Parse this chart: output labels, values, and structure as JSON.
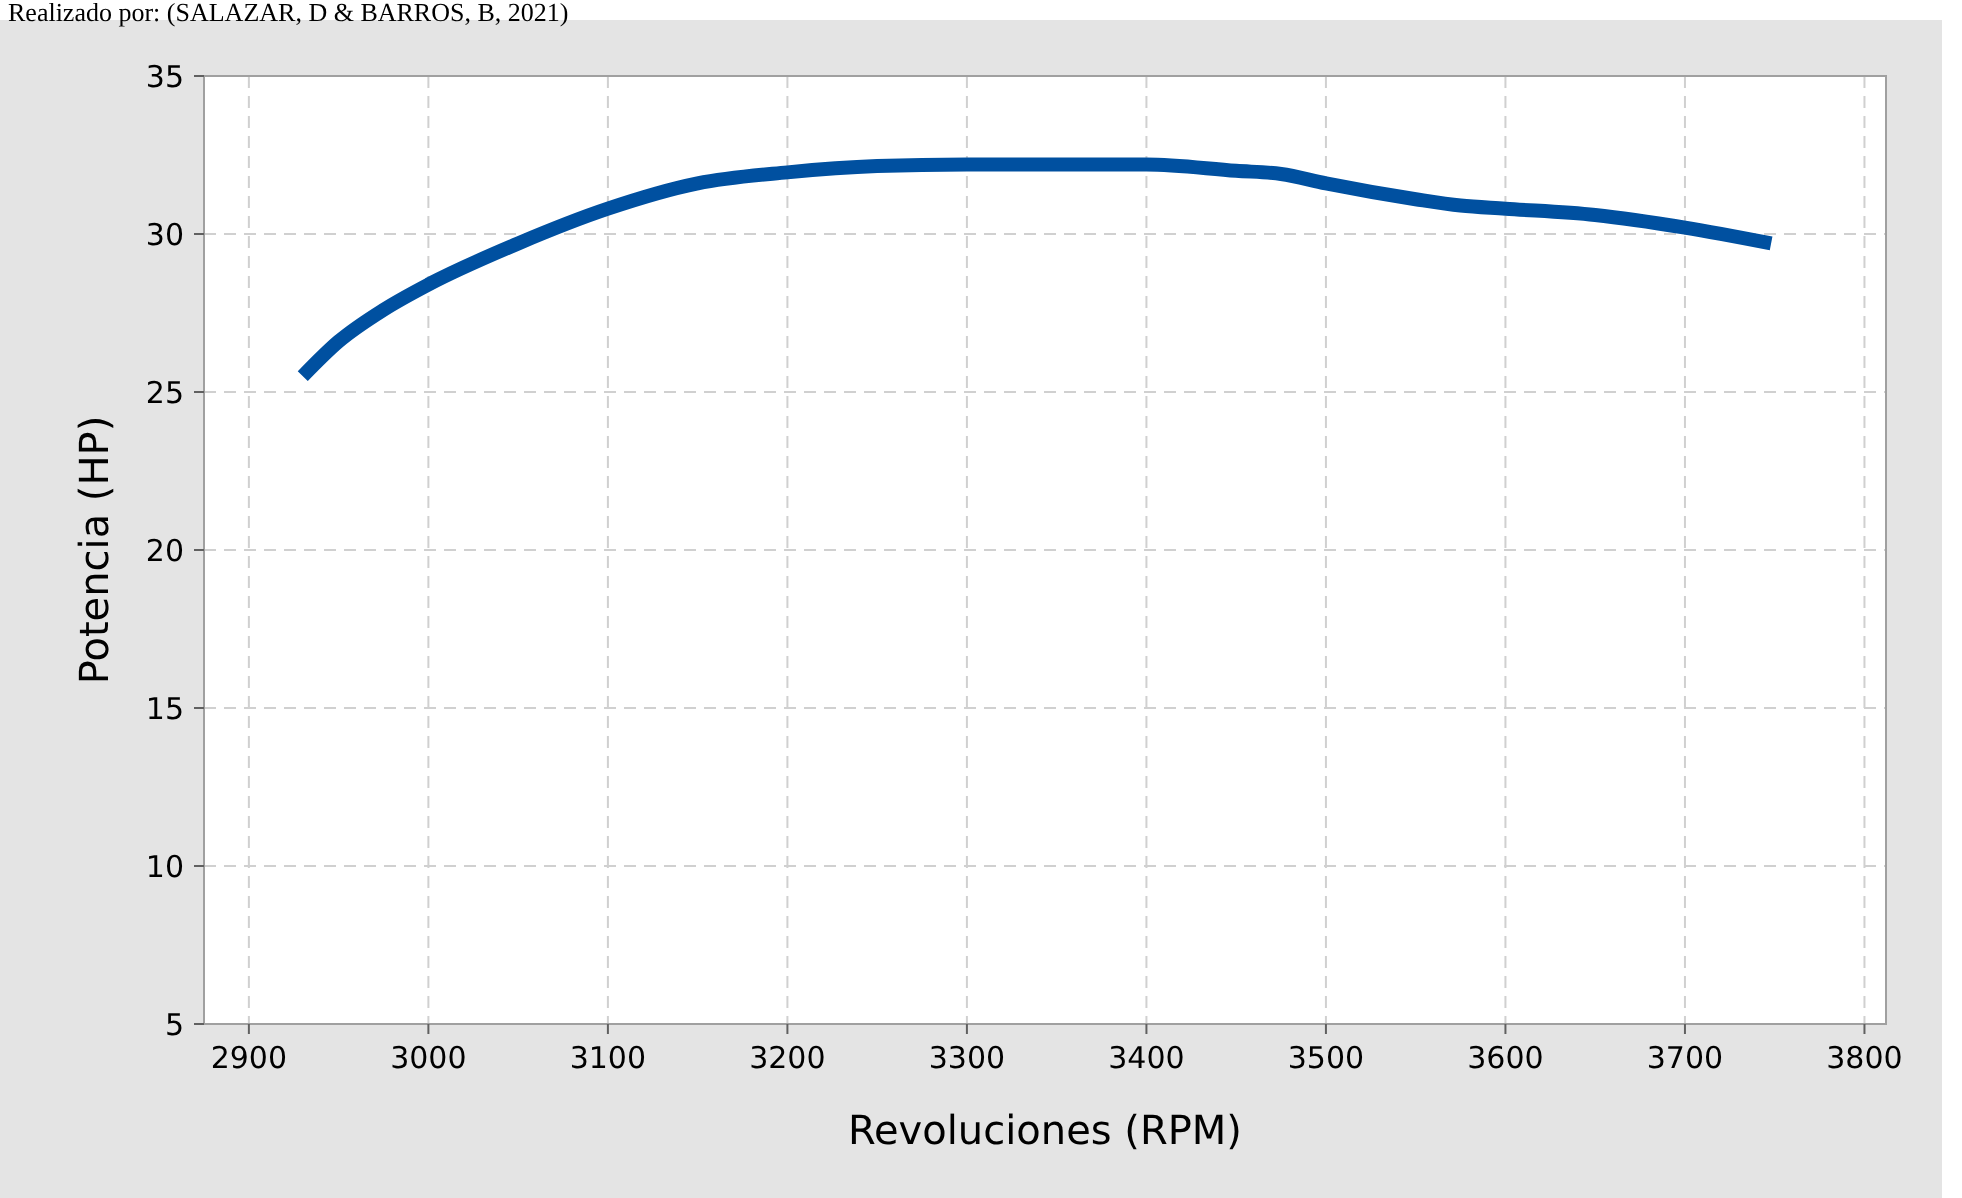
{
  "chart_data": {
    "type": "line",
    "xlabel": "Revoluciones (RPM)",
    "ylabel": "Potencia (HP)",
    "annotations": [
      "Realizado por: (SALAZAR, D & BARROS, B, 2021)"
    ],
    "x": [
      2930,
      2950,
      2975,
      3000,
      3050,
      3100,
      3150,
      3200,
      3250,
      3300,
      3350,
      3400,
      3450,
      3475,
      3500,
      3550,
      3575,
      3600,
      3650,
      3700,
      3748
    ],
    "series": [
      {
        "color": "#0050a0",
        "values": [
          25.5,
          26.6,
          27.6,
          28.4,
          29.7,
          30.8,
          31.6,
          31.95,
          32.15,
          32.2,
          32.2,
          32.2,
          32.0,
          31.9,
          31.6,
          31.1,
          30.9,
          30.8,
          30.6,
          30.2,
          29.7
        ]
      }
    ],
    "xlim": [
      2875,
      3812
    ],
    "ylim": [
      5,
      35
    ],
    "xticks": [
      2900,
      3000,
      3100,
      3200,
      3300,
      3400,
      3500,
      3600,
      3700,
      3800
    ],
    "yticks": [
      5,
      10,
      15,
      20,
      25,
      30,
      35
    ],
    "grid": true,
    "marker": "none",
    "line_style": "solid"
  }
}
